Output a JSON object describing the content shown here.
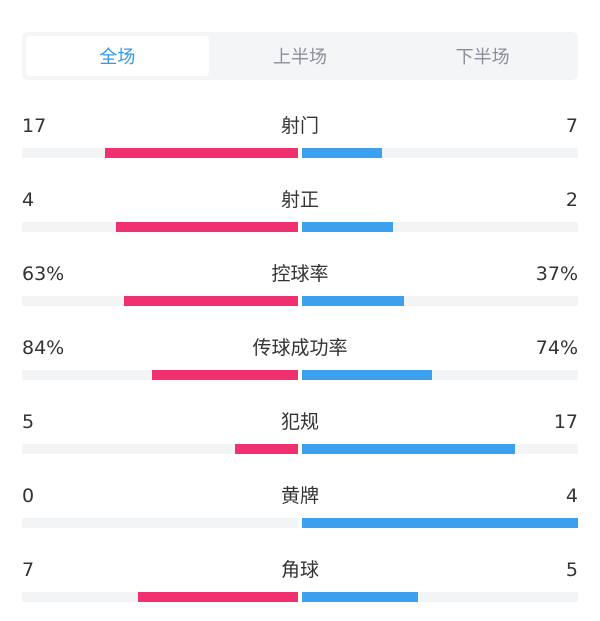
{
  "colors": {
    "home": "#f0306f",
    "away": "#3da0ee",
    "accent": "#2f9ae8"
  },
  "tabs": [
    {
      "label": "全场",
      "active": true
    },
    {
      "label": "上半场",
      "active": false
    },
    {
      "label": "下半场",
      "active": false
    }
  ],
  "stats": [
    {
      "label": "射门",
      "home": "17",
      "away": "7",
      "home_share": 0.7,
      "away_share": 0.29
    },
    {
      "label": "射正",
      "home": "4",
      "away": "2",
      "home_share": 0.66,
      "away_share": 0.33
    },
    {
      "label": "控球率",
      "home": "63%",
      "away": "37%",
      "home_share": 0.63,
      "away_share": 0.37
    },
    {
      "label": "传球成功率",
      "home": "84%",
      "away": "74%",
      "home_share": 0.53,
      "away_share": 0.47
    },
    {
      "label": "犯规",
      "home": "5",
      "away": "17",
      "home_share": 0.23,
      "away_share": 0.77
    },
    {
      "label": "黄牌",
      "home": "0",
      "away": "4",
      "home_share": 0.0,
      "away_share": 1.0
    },
    {
      "label": "角球",
      "home": "7",
      "away": "5",
      "home_share": 0.58,
      "away_share": 0.42
    }
  ]
}
